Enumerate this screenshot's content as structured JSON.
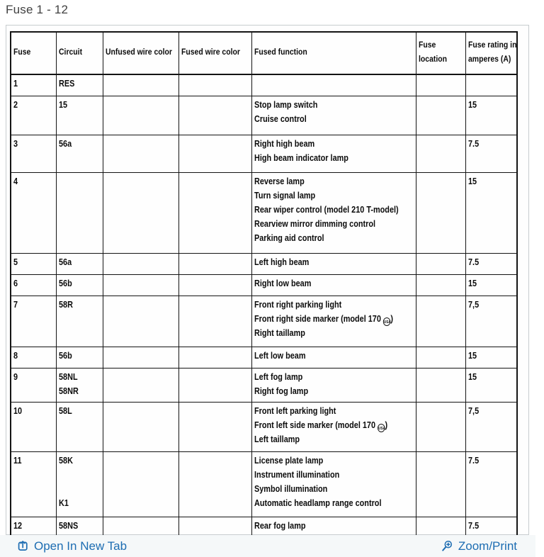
{
  "page": {
    "title": "Fuse 1 - 12"
  },
  "colors": {
    "accent_blue": "#1d6db2",
    "table_ink": "#141414",
    "footer_background": "#f5f8f9",
    "panel_border": "#c7cccf",
    "title_text": "#414141"
  },
  "table": {
    "header_lines": [
      [
        "Fuse"
      ],
      [
        "Circuit"
      ],
      [
        "Unfused wire color"
      ],
      [
        "Fused wire color"
      ],
      [
        "Fused function"
      ],
      [
        "Fuse",
        "location"
      ],
      [
        "Fuse rating in",
        "amperes (A)"
      ]
    ],
    "rows": [
      {
        "fuse": "1",
        "circuit_lines": [
          "RES"
        ],
        "unfused_wire_color": "",
        "fused_wire_color": "",
        "function_lines": [],
        "fuse_location": "",
        "rating": ""
      },
      {
        "fuse": "2",
        "circuit_lines": [
          "15"
        ],
        "unfused_wire_color": "",
        "fused_wire_color": "",
        "function_lines": [
          "Stop lamp switch",
          "Cruise control"
        ],
        "fuse_location": "",
        "rating": "15"
      },
      {
        "fuse": "3",
        "circuit_lines": [
          "56a"
        ],
        "unfused_wire_color": "",
        "fused_wire_color": "",
        "function_lines": [
          "Right high beam",
          "High beam indicator lamp"
        ],
        "fuse_location": "",
        "rating": "7.5"
      },
      {
        "fuse": "4",
        "circuit_lines": [],
        "unfused_wire_color": "",
        "fused_wire_color": "",
        "function_lines": [
          "Reverse lamp",
          "Turn signal lamp",
          "Rear wiper control (model 210 T-model)",
          "Rearview mirror dimming control",
          "Parking aid control"
        ],
        "fuse_location": "",
        "rating": "15"
      },
      {
        "fuse": "5",
        "circuit_lines": [
          "56a"
        ],
        "unfused_wire_color": "",
        "fused_wire_color": "",
        "function_lines": [
          "Left high beam"
        ],
        "fuse_location": "",
        "rating": "7.5"
      },
      {
        "fuse": "6",
        "circuit_lines": [
          "56b"
        ],
        "unfused_wire_color": "",
        "fused_wire_color": "",
        "function_lines": [
          "Right low beam"
        ],
        "fuse_location": "",
        "rating": "15"
      },
      {
        "fuse": "7",
        "circuit_lines": [
          "58R"
        ],
        "unfused_wire_color": "",
        "fused_wire_color": "",
        "function_lines": [
          "Front right parking light",
          "Front right side marker (model 170 {USA})",
          "Right taillamp"
        ],
        "fuse_location": "",
        "rating": "7,5"
      },
      {
        "fuse": "8",
        "circuit_lines": [
          "56b"
        ],
        "unfused_wire_color": "",
        "fused_wire_color": "",
        "function_lines": [
          "Left low beam"
        ],
        "fuse_location": "",
        "rating": "15"
      },
      {
        "fuse": "9",
        "circuit_lines": [
          "58NL",
          "58NR"
        ],
        "unfused_wire_color": "",
        "fused_wire_color": "",
        "function_lines": [
          "Left fog lamp",
          "Right fog lamp"
        ],
        "fuse_location": "",
        "rating": "15"
      },
      {
        "fuse": "10",
        "circuit_lines": [
          "58L"
        ],
        "unfused_wire_color": "",
        "fused_wire_color": "",
        "function_lines": [
          "Front left parking light",
          "Front left side marker (model 170 {USA})",
          "Left taillamp"
        ],
        "fuse_location": "",
        "rating": "7,5"
      },
      {
        "fuse": "11",
        "circuit_lines": [
          "58K",
          "",
          "",
          "K1"
        ],
        "unfused_wire_color": "",
        "fused_wire_color": "",
        "function_lines": [
          "License plate lamp",
          "Instrument illumination",
          "Symbol illumination",
          "Automatic headlamp range control"
        ],
        "fuse_location": "",
        "rating": "7.5"
      },
      {
        "fuse": "12",
        "circuit_lines": [
          "58NS"
        ],
        "unfused_wire_color": "",
        "fused_wire_color": "",
        "function_lines": [
          "Rear fog lamp"
        ],
        "fuse_location": "",
        "rating": "7.5"
      }
    ],
    "usa_badge_text": "USA"
  },
  "footer": {
    "open_in_new_tab_label": "Open In New Tab",
    "zoom_print_label": "Zoom/Print"
  }
}
